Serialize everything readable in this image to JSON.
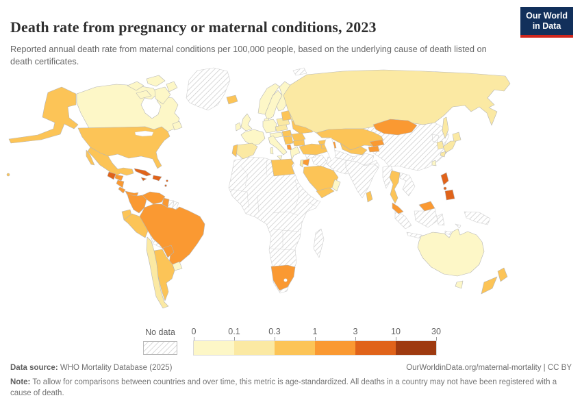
{
  "header": {
    "title": "Death rate from pregnancy or maternal conditions, 2023",
    "subtitle": "Reported annual death rate from maternal conditions per 100,000 people, based on the underlying cause of death listed on death certificates."
  },
  "logo": {
    "line1": "Our World",
    "line2": "in Data",
    "bg_color": "#12305b",
    "stripe_color": "#d0261c"
  },
  "legend": {
    "no_data_label": "No data",
    "ticks": [
      "0",
      "0.1",
      "0.3",
      "1",
      "3",
      "10",
      "30"
    ],
    "band_order": [
      "0-0.1",
      "0.1-0.3",
      "0.3-1",
      "1-3",
      "3-10",
      "10-30"
    ],
    "band_colors": {
      "0-0.1": "#fdf7c7",
      "0.1-0.3": "#fbe9a3",
      "0.3-1": "#fcc457",
      "1-3": "#fa9932",
      "3-10": "#e0631a",
      "10-30": "#9e3a10"
    },
    "no_data_hatch_color": "#cccccc"
  },
  "chart_data": {
    "type": "choropleth",
    "title": "Death rate from pregnancy or maternal conditions, 2023",
    "unit": "deaths per 100,000 people",
    "year": "2023",
    "bins": [
      "0-0.1",
      "0.1-0.3",
      "0.3-1",
      "1-3",
      "3-10",
      "10-30",
      "no-data"
    ],
    "legend_position": "bottom",
    "countries": {
      "canada": "0-0.1",
      "greenland": "no-data",
      "iceland": "0.3-1",
      "united-states": "0.3-1",
      "hawaii": "0.3-1",
      "mexico": "0.3-1",
      "guatemala": "3-10",
      "honduras": "1-3",
      "nicaragua": "1-3",
      "costa-rica": "1-3",
      "panama": "1-3",
      "cuba": "3-10",
      "jamaica": "3-10",
      "hispaniola": "3-10",
      "lesser-antilles": "3-10",
      "colombia": "1-3",
      "venezuela": "1-3",
      "guyana": "1-3",
      "suriname": "no-data",
      "french-guiana": "no-data",
      "ecuador": "0.3-1",
      "peru": "0.3-1",
      "brazil": "1-3",
      "bolivia": "no-data",
      "paraguay": "1-3",
      "chile": "0.1-0.3",
      "argentina": "0.3-1",
      "uruguay": "0-0.1",
      "united-kingdom": "0-0.1",
      "ireland": "0-0.1",
      "norway": "0-0.1",
      "sweden": "0-0.1",
      "finland": "0-0.1",
      "denmark": "0-0.1",
      "france": "0-0.1",
      "spain": "0.1-0.3",
      "portugal": "0.3-1",
      "germany": "0-0.1",
      "austria-switzerland": "0-0.1",
      "italy": "0-0.1",
      "poland": "0.1-0.3",
      "czechia-slovakia": "0.1-0.3",
      "hungary": "0.3-1",
      "baltic-states": "0.3-1",
      "belarus": "0.1-0.3",
      "ukraine": "0.3-1",
      "romania": "0.3-1",
      "bulgaria": "0.3-1",
      "balkans": "0.3-1",
      "albania": "1-3",
      "greece": "0-0.1",
      "turkey": "0.3-1",
      "georgia": "0.3-1",
      "armenia": "0.3-1",
      "azerbaijan": "1-3",
      "russia": "0.1-0.3",
      "kazakhstan": "0.3-1",
      "uzbekistan": "0.3-1",
      "turkmenistan": "no-data",
      "kyrgyzstan": "1-3",
      "tajikistan": "1-3",
      "afghanistan": "no-data",
      "pakistan": "no-data",
      "iran": "no-data",
      "iraq": "no-data",
      "syria": "no-data",
      "jordan": "1-3",
      "israel": "0.1-0.3",
      "saudi-arabia": "0.3-1",
      "yemen": "0.3-1",
      "oman": "0-0.1",
      "egypt": "0.3-1",
      "africa-mainland": "no-data",
      "south-africa": "1-3",
      "madagascar": "no-data",
      "india": "no-data",
      "sri-lanka": "0.3-1",
      "china": "no-data",
      "mongolia": "1-3",
      "north-korea": "no-data",
      "south-korea": "0.1-0.3",
      "japan": "0.1-0.3",
      "taiwan": "0-0.1",
      "myanmar": "no-data",
      "thailand": "0.3-1",
      "vietnam-laos-cambodia": "no-data",
      "malaysia": "1-3",
      "indonesia": "no-data",
      "philippines": "3-10",
      "papua-new-guinea": "no-data",
      "svalbard": "no-data",
      "australia": "0-0.1",
      "tasmania": "0-0.1",
      "new-zealand": "0.3-1"
    }
  },
  "footer": {
    "source_label": "Data source:",
    "source_text": " WHO Mortality Database (2025)",
    "attribution": "OurWorldinData.org/maternal-mortality | CC BY",
    "note_label": "Note:",
    "note_text": " To allow for comparisons between countries and over time, this metric is age-standardized. All deaths in a country may not have been registered with a cause of death."
  }
}
